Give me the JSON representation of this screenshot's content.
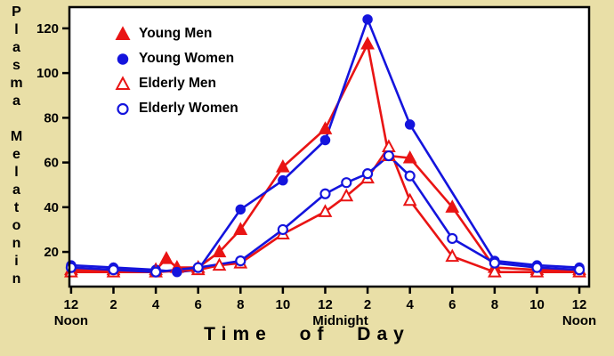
{
  "page": {
    "background": "#e9dfa7"
  },
  "chart_data": {
    "type": "line",
    "title": "",
    "xlabel": "Time of Day",
    "ylabel": "Plasma Melatonin",
    "plot_background": "#ffffff",
    "axis_color": "#000000",
    "grid": false,
    "legend_position": "top-left",
    "x_axis": {
      "range": [
        -0.08,
        24.46
      ],
      "ticks": [
        0,
        2,
        4,
        6,
        8,
        10,
        12,
        14,
        16,
        18,
        20,
        22,
        24
      ],
      "tick_labels": [
        "12",
        "2",
        "4",
        "6",
        "8",
        "10",
        "12",
        "2",
        "4",
        "6",
        "8",
        "10",
        "12"
      ],
      "sub_labels": [
        {
          "at": 0,
          "text": "Noon",
          "dx": 0
        },
        {
          "at": 12,
          "text": "Midnight",
          "dx": 17
        },
        {
          "at": 24,
          "text": "Noon",
          "dx": 0
        }
      ]
    },
    "y_axis": {
      "range": [
        4.5,
        129.5
      ],
      "ticks": [
        20,
        40,
        60,
        80,
        100,
        120
      ]
    },
    "series": [
      {
        "name": "Young Men",
        "color": "#e91414",
        "marker": "triangle-filled",
        "points": [
          [
            0,
            12
          ],
          [
            2,
            12
          ],
          [
            4,
            12
          ],
          [
            4.5,
            17
          ],
          [
            5,
            13
          ],
          [
            6,
            13
          ],
          [
            7,
            20
          ],
          [
            8,
            30
          ],
          [
            10,
            58
          ],
          [
            12,
            75
          ],
          [
            14,
            113
          ],
          [
            15,
            63
          ],
          [
            16,
            62
          ],
          [
            18,
            40
          ],
          [
            20,
            13
          ],
          [
            22,
            12
          ],
          [
            24,
            12
          ]
        ]
      },
      {
        "name": "Young Women",
        "color": "#1414dd",
        "marker": "circle-filled",
        "points": [
          [
            0,
            14
          ],
          [
            2,
            13
          ],
          [
            4,
            12
          ],
          [
            5,
            11
          ],
          [
            6,
            12
          ],
          [
            8,
            39
          ],
          [
            10,
            52
          ],
          [
            12,
            70
          ],
          [
            14,
            124
          ],
          [
            16,
            77
          ],
          [
            20,
            16
          ],
          [
            22,
            14
          ],
          [
            24,
            13
          ]
        ]
      },
      {
        "name": "Elderly Men",
        "color": "#e91414",
        "marker": "triangle-open",
        "points": [
          [
            0,
            11
          ],
          [
            2,
            11
          ],
          [
            4,
            11
          ],
          [
            6,
            12
          ],
          [
            7,
            14
          ],
          [
            8,
            15
          ],
          [
            10,
            28
          ],
          [
            12,
            38
          ],
          [
            13,
            45
          ],
          [
            14,
            53
          ],
          [
            15,
            67
          ],
          [
            16,
            43
          ],
          [
            18,
            18
          ],
          [
            20,
            11
          ],
          [
            22,
            11
          ],
          [
            24,
            11
          ]
        ]
      },
      {
        "name": "Elderly Women",
        "color": "#1414dd",
        "marker": "circle-open",
        "points": [
          [
            0,
            13
          ],
          [
            2,
            12
          ],
          [
            4,
            11
          ],
          [
            6,
            13
          ],
          [
            8,
            16
          ],
          [
            10,
            30
          ],
          [
            12,
            46
          ],
          [
            13,
            51
          ],
          [
            14,
            55
          ],
          [
            15,
            63
          ],
          [
            16,
            54
          ],
          [
            18,
            26
          ],
          [
            20,
            15
          ],
          [
            22,
            13
          ],
          [
            24,
            12
          ]
        ]
      }
    ]
  }
}
